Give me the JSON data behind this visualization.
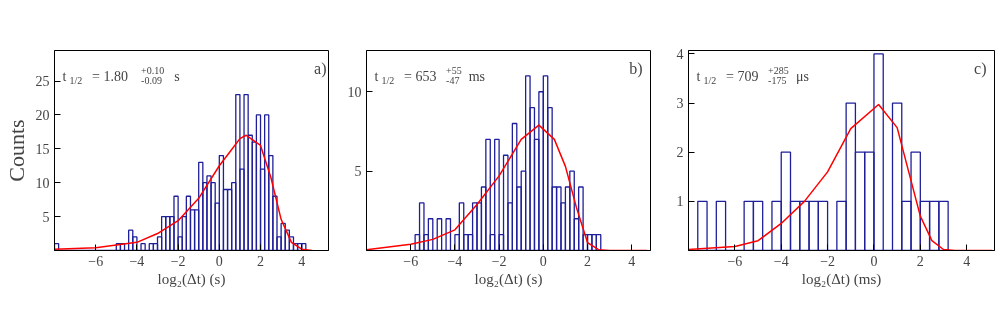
{
  "chart_data": [
    {
      "type": "histogram",
      "ylabel": "Counts",
      "xlabel": "log₂(Δt) (s)",
      "xlim": [
        -8,
        5.3
      ],
      "ylim": [
        0,
        29.5
      ],
      "xticks": [
        -6,
        -4,
        -2,
        0,
        2,
        4
      ],
      "yticks": [
        5,
        10,
        15,
        20,
        25
      ],
      "grid": false,
      "annotations": [
        "t$_{1/2}$ = 1.80$^{+0.10}$$_{-0.09}$ s",
        "a)"
      ],
      "series": [
        {
          "color": "#1f1f9a",
          "bins": [
            -8,
            -7.8,
            -7.6,
            -7.4,
            -7.2,
            -7,
            -6.8,
            -6.6,
            -6.4,
            -6.2,
            -6,
            -5.8,
            -5.6,
            -5.4,
            -5.2,
            -5,
            -4.8,
            -4.6,
            -4.4,
            -4.2,
            -4,
            -3.8,
            -3.6,
            -3.4,
            -3.2,
            -3,
            -2.8,
            -2.6,
            -2.4,
            -2.2,
            -2,
            -1.8,
            -1.6,
            -1.4,
            -1.2,
            -1,
            -0.8,
            -0.6,
            -0.4,
            -0.2,
            0,
            0.2,
            0.4,
            0.6,
            0.8,
            1,
            1.2,
            1.4,
            1.6,
            1.8,
            2,
            2.2,
            2.4,
            2.6,
            2.8,
            3,
            3.2,
            3.4,
            3.6,
            3.8,
            4,
            4.2
          ],
          "values": [
            1,
            0,
            0,
            0,
            0,
            0,
            0,
            0,
            0,
            0,
            0,
            0,
            0,
            0,
            0,
            1,
            1,
            0,
            3,
            2,
            0,
            1,
            0,
            1,
            1,
            2,
            5,
            5,
            5,
            8,
            2,
            5,
            8,
            6,
            6,
            13,
            10,
            11,
            10,
            7,
            14,
            9,
            9,
            10,
            23,
            12,
            23,
            17,
            16,
            20,
            12,
            20,
            14,
            8,
            2,
            4,
            3,
            2,
            1,
            1,
            1
          ]
        },
        {
          "type": "line",
          "color": "#ff0000",
          "x": [
            -8,
            -6,
            -4,
            -3,
            -2,
            -1,
            0,
            0.5,
            1,
            1.3,
            2,
            2.5,
            3,
            3.5,
            4,
            4.5
          ],
          "values": [
            0.2,
            0.4,
            1.2,
            2.5,
            4.4,
            7.7,
            12.5,
            14.5,
            16.5,
            17,
            15.5,
            10.8,
            4.6,
            1.2,
            0.2,
            0
          ]
        }
      ]
    },
    {
      "type": "histogram",
      "xlabel": "log₂(Δt) (s)",
      "xlim": [
        -8,
        4.85
      ],
      "ylim": [
        0,
        12.6
      ],
      "xticks": [
        -6,
        -4,
        -2,
        0,
        2,
        4
      ],
      "yticks": [
        5,
        10
      ],
      "grid": false,
      "annotations": [
        "t$_{1/2}$ = 653$^{+55}$$_{-47}$ ms",
        "b)"
      ],
      "series": [
        {
          "color": "#1f1f9a",
          "bins": [
            -5.8,
            -5.6,
            -5.4,
            -5.2,
            -5,
            -4.8,
            -4.6,
            -4.4,
            -4.2,
            -4,
            -3.8,
            -3.6,
            -3.4,
            -3.2,
            -3,
            -2.8,
            -2.6,
            -2.4,
            -2.2,
            -2,
            -1.8,
            -1.6,
            -1.4,
            -1.2,
            -1,
            -0.8,
            -0.6,
            -0.4,
            -0.2,
            0,
            0.2,
            0.4,
            0.6,
            0.8,
            1,
            1.2,
            1.4,
            1.6,
            1.8,
            2,
            2.2,
            2.4,
            2.6
          ],
          "values": [
            1,
            3,
            1,
            2,
            0,
            2,
            0,
            2,
            0,
            1,
            3,
            1,
            1,
            3,
            3,
            4,
            7,
            1,
            7,
            1,
            6,
            3,
            8,
            4,
            5,
            11,
            9,
            7,
            10,
            11,
            9,
            4,
            4,
            3,
            4,
            5,
            2,
            4,
            1,
            1,
            1,
            1
          ]
        },
        {
          "type": "line",
          "color": "#ff0000",
          "x": [
            -8,
            -6,
            -5,
            -4,
            -3,
            -2,
            -1,
            -0.2,
            0.5,
            1,
            1.5,
            2,
            2.5,
            3,
            4.7
          ],
          "values": [
            0.05,
            0.4,
            0.7,
            1.3,
            2.9,
            4.7,
            7.0,
            7.9,
            7,
            5.3,
            2.7,
            0.5,
            0.05,
            0,
            0
          ]
        }
      ]
    },
    {
      "type": "histogram",
      "xlabel": "log₂(Δt) (ms)",
      "xlim": [
        -8,
        5.2
      ],
      "ylim": [
        0,
        4.07
      ],
      "xticks": [
        -6,
        -4,
        -2,
        0,
        2,
        4
      ],
      "yticks": [
        1,
        2,
        3,
        4
      ],
      "grid": false,
      "annotations": [
        "t$_{1/2}$ = 709$^{+285}$$_{-175}$ μs",
        "c)"
      ],
      "series": [
        {
          "color": "#1f1f9a",
          "bins": [
            -7.6,
            -7.2,
            -6.8,
            -6.4,
            -6,
            -5.6,
            -5.2,
            -4.8,
            -4.4,
            -4,
            -3.6,
            -3.2,
            -2.8,
            -2.4,
            -2,
            -1.6,
            -1.2,
            -0.8,
            -0.4,
            0,
            0.4,
            0.8,
            1.2,
            1.6,
            2,
            2.4,
            2.8,
            3.2
          ],
          "values": [
            1,
            0,
            1,
            0,
            0,
            1,
            1,
            0,
            1,
            2,
            1,
            1,
            1,
            1,
            0,
            1,
            3,
            2,
            2,
            4,
            0,
            3,
            1,
            2,
            1,
            1,
            1
          ]
        },
        {
          "type": "line",
          "color": "#ff0000",
          "x": [
            -8,
            -6,
            -5,
            -4,
            -3,
            -2,
            -1,
            0.2,
            1,
            1.5,
            2,
            2.5,
            3,
            3.5,
            5.1
          ],
          "values": [
            0.02,
            0.08,
            0.2,
            0.55,
            1.0,
            1.6,
            2.48,
            2.97,
            2.5,
            1.6,
            0.7,
            0.2,
            0.02,
            0,
            0
          ]
        }
      ]
    }
  ]
}
